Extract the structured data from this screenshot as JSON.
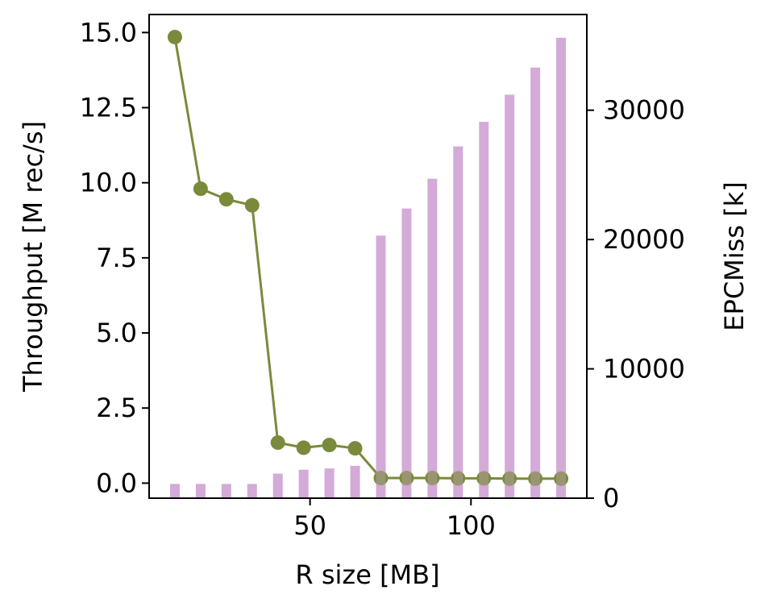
{
  "chart_data": {
    "type": "bar+line",
    "x": [
      8,
      16,
      24,
      32,
      40,
      48,
      56,
      64,
      72,
      80,
      88,
      96,
      104,
      112,
      120,
      128
    ],
    "xlabel": "R size [MB]",
    "xlim": [
      0,
      136
    ],
    "xticks": [
      50,
      100
    ],
    "series": [
      {
        "type": "line",
        "axis": "left",
        "color": "#7a8a3c",
        "marker": "circle",
        "values": [
          14.85,
          9.8,
          9.45,
          9.25,
          1.35,
          1.18,
          1.27,
          1.16,
          0.17,
          0.17,
          0.17,
          0.16,
          0.16,
          0.15,
          0.15,
          0.15
        ]
      },
      {
        "type": "bar",
        "axis": "right",
        "color": "#d4aad8",
        "values": [
          1100,
          1100,
          1100,
          1100,
          1900,
          2200,
          2300,
          2500,
          20300,
          22400,
          24700,
          27200,
          29100,
          31200,
          33300,
          35600
        ]
      }
    ],
    "y_left": {
      "label": "Throughput [M rec/s]",
      "lim": [
        -0.5,
        15.6
      ],
      "ticks": [
        0.0,
        2.5,
        5.0,
        7.5,
        10.0,
        12.5,
        15.0
      ],
      "tick_labels": [
        "0.0",
        "2.5",
        "5.0",
        "7.5",
        "10.0",
        "12.5",
        "15.0"
      ]
    },
    "y_right": {
      "label": "EPCMiss [k]",
      "lim": [
        0,
        37400
      ],
      "ticks": [
        0,
        10000,
        20000,
        30000
      ],
      "tick_labels": [
        "0",
        "10000",
        "20000",
        "30000"
      ]
    },
    "grid": false
  }
}
